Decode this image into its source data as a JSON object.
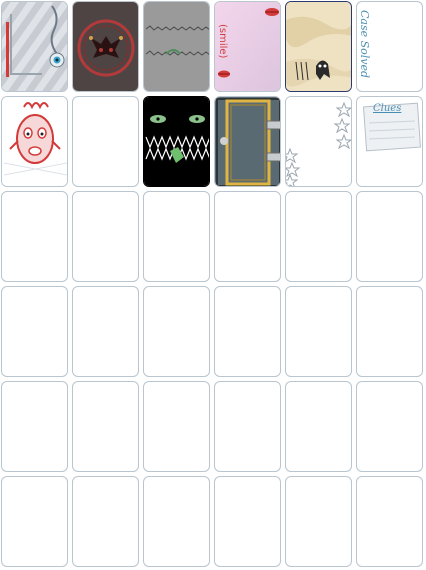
{
  "slots": [
    {
      "id": 1,
      "theme": "silver-stripes",
      "icon": "eye-pendulum-icon"
    },
    {
      "id": 2,
      "theme": "dark-jester",
      "icon": "jester-mask-icon"
    },
    {
      "id": 3,
      "theme": "gray-stitch",
      "icon": "stitched-seam-icon"
    },
    {
      "id": 4,
      "theme": "pink-lips",
      "icon": "lips-icon",
      "text": "(smile)"
    },
    {
      "id": 5,
      "theme": "parchment",
      "icon": "ghost-icon"
    },
    {
      "id": 6,
      "theme": "white",
      "text": "Case Solved"
    },
    {
      "id": 7,
      "theme": "clown-doll",
      "icon": "doll-face-icon"
    },
    {
      "id": 8,
      "theme": "blank"
    },
    {
      "id": 9,
      "theme": "monster-mouth",
      "icon": "monster-eyes-icon"
    },
    {
      "id": 10,
      "theme": "gold-door",
      "icon": "door-hinge-icon"
    },
    {
      "id": 11,
      "theme": "stars",
      "icon": "stars-icon"
    },
    {
      "id": 12,
      "theme": "clues-note",
      "text": "Clues"
    }
  ],
  "empty_slots": 24,
  "colors": {
    "border": "#b9c5cf",
    "background": "#ffffff",
    "accent_blue": "#4a8fb3",
    "red": "#d33a3a"
  }
}
